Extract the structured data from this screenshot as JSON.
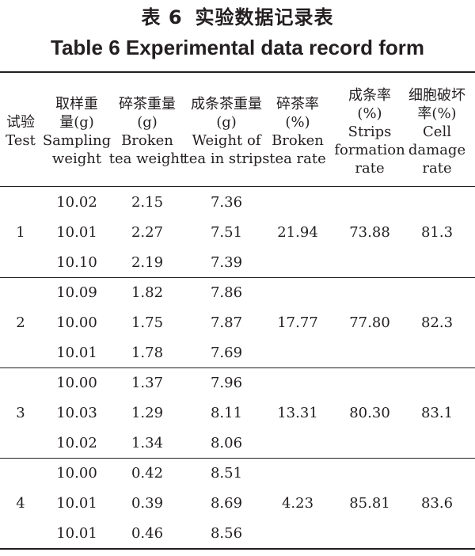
{
  "title": {
    "cn_label": "表 6",
    "cn_text": "实验数据记录表",
    "en": "Table 6 Experimental data record form"
  },
  "columns": [
    {
      "key": "test",
      "lines": [
        "试验",
        "Test"
      ]
    },
    {
      "key": "sampling",
      "lines": [
        "取样重",
        "量(g)",
        "Sampling",
        "weight"
      ]
    },
    {
      "key": "broken",
      "lines": [
        "碎茶重量",
        "(g)",
        "Broken",
        "tea weight"
      ]
    },
    {
      "key": "strips_weight",
      "lines": [
        "成条茶重量",
        "(g)",
        "Weight of",
        "tea in strips"
      ]
    },
    {
      "key": "broken_rate",
      "lines": [
        "碎茶率",
        "(%)",
        "Broken",
        "tea rate"
      ]
    },
    {
      "key": "strips_rate",
      "lines": [
        "成条率",
        "(%)",
        "Strips",
        "formation",
        "rate"
      ]
    },
    {
      "key": "cell_rate",
      "lines": [
        "细胞破坏",
        "率(%)",
        "Cell",
        "damage",
        "rate"
      ]
    }
  ],
  "groups": [
    {
      "test": "1",
      "broken_rate": "21.94",
      "strips_rate": "73.88",
      "cell_rate": "81.3",
      "rows": [
        {
          "sampling": "10.02",
          "broken": "2.15",
          "strips_weight": "7.36"
        },
        {
          "sampling": "10.01",
          "broken": "2.27",
          "strips_weight": "7.51"
        },
        {
          "sampling": "10.10",
          "broken": "2.19",
          "strips_weight": "7.39"
        }
      ]
    },
    {
      "test": "2",
      "broken_rate": "17.77",
      "strips_rate": "77.80",
      "cell_rate": "82.3",
      "rows": [
        {
          "sampling": "10.09",
          "broken": "1.82",
          "strips_weight": "7.86"
        },
        {
          "sampling": "10.00",
          "broken": "1.75",
          "strips_weight": "7.87"
        },
        {
          "sampling": "10.01",
          "broken": "1.78",
          "strips_weight": "7.69"
        }
      ]
    },
    {
      "test": "3",
      "broken_rate": "13.31",
      "strips_rate": "80.30",
      "cell_rate": "83.1",
      "rows": [
        {
          "sampling": "10.00",
          "broken": "1.37",
          "strips_weight": "7.96"
        },
        {
          "sampling": "10.03",
          "broken": "1.29",
          "strips_weight": "8.11"
        },
        {
          "sampling": "10.02",
          "broken": "1.34",
          "strips_weight": "8.06"
        }
      ]
    },
    {
      "test": "4",
      "broken_rate": "4.23",
      "strips_rate": "85.81",
      "cell_rate": "83.6",
      "rows": [
        {
          "sampling": "10.00",
          "broken": "0.42",
          "strips_weight": "8.51"
        },
        {
          "sampling": "10.01",
          "broken": "0.39",
          "strips_weight": "8.69"
        },
        {
          "sampling": "10.01",
          "broken": "0.46",
          "strips_weight": "8.56"
        }
      ]
    }
  ]
}
